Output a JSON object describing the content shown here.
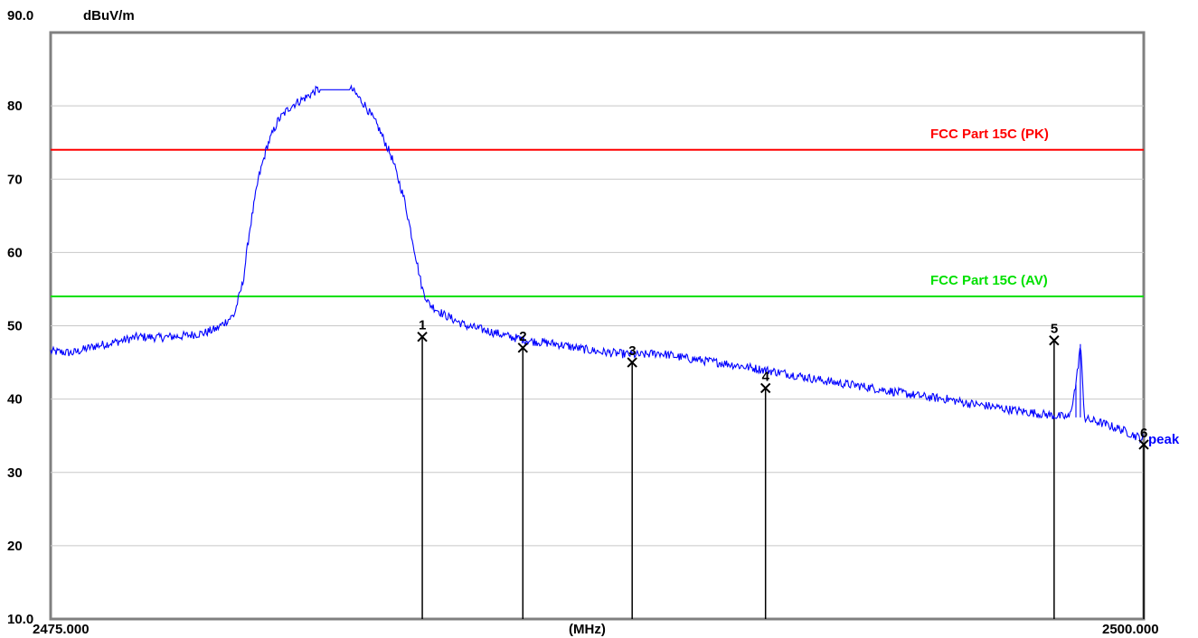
{
  "chart_data": {
    "type": "line",
    "ylabel": "dBuV/m",
    "xlabel": "(MHz)",
    "xlim": [
      2475.0,
      2500.0
    ],
    "ylim": [
      10.0,
      90.0
    ],
    "x_tick_labels": [
      "2475.000",
      "2500.000"
    ],
    "y_ticks": [
      {
        "value": 90,
        "label": "90.0"
      },
      {
        "value": 80,
        "label": "80"
      },
      {
        "value": 70,
        "label": "70"
      },
      {
        "value": 60,
        "label": "60"
      },
      {
        "value": 50,
        "label": "50"
      },
      {
        "value": 40,
        "label": "40"
      },
      {
        "value": 30,
        "label": "30"
      },
      {
        "value": 20,
        "label": "20"
      },
      {
        "value": 10,
        "label": "10.0"
      }
    ],
    "grid": true,
    "limit_lines": [
      {
        "name": "FCC Part 15C (PK)",
        "value": 74.0,
        "color": "#ff0000"
      },
      {
        "name": "FCC Part 15C (AV)",
        "value": 54.0,
        "color": "#00e000"
      }
    ],
    "series": [
      {
        "name": "peak",
        "color": "#0000ff",
        "points": [
          [
            2475.0,
            46.5
          ],
          [
            2475.5,
            46.3
          ],
          [
            2476.0,
            47.2
          ],
          [
            2476.5,
            47.8
          ],
          [
            2477.0,
            48.5
          ],
          [
            2477.5,
            48.4
          ],
          [
            2478.0,
            48.6
          ],
          [
            2478.5,
            49.0
          ],
          [
            2478.8,
            49.6
          ],
          [
            2479.2,
            51.5
          ],
          [
            2479.4,
            56.0
          ],
          [
            2479.55,
            63.0
          ],
          [
            2479.75,
            70.0
          ],
          [
            2479.95,
            74.5
          ],
          [
            2480.2,
            78.0
          ],
          [
            2480.5,
            80.0
          ],
          [
            2480.85,
            81.2
          ],
          [
            2481.1,
            82.2
          ],
          [
            2481.9,
            82.2
          ],
          [
            2482.2,
            80.0
          ],
          [
            2482.5,
            77.0
          ],
          [
            2482.8,
            73.0
          ],
          [
            2483.1,
            67.0
          ],
          [
            2483.3,
            61.0
          ],
          [
            2483.5,
            55.0
          ],
          [
            2483.65,
            53.0
          ],
          [
            2484.0,
            51.5
          ],
          [
            2484.5,
            50.0
          ],
          [
            2485.0,
            49.3
          ],
          [
            2485.5,
            48.5
          ],
          [
            2486.0,
            47.9
          ],
          [
            2486.6,
            47.5
          ],
          [
            2487.0,
            47.0
          ],
          [
            2487.5,
            46.5
          ],
          [
            2488.0,
            46.2
          ],
          [
            2488.5,
            46.0
          ],
          [
            2488.9,
            46.3
          ],
          [
            2489.5,
            45.6
          ],
          [
            2490.0,
            45.2
          ],
          [
            2490.5,
            44.8
          ],
          [
            2491.0,
            44.3
          ],
          [
            2491.5,
            43.8
          ],
          [
            2492.0,
            43.3
          ],
          [
            2492.5,
            42.7
          ],
          [
            2493.0,
            42.2
          ],
          [
            2493.5,
            41.8
          ],
          [
            2494.0,
            41.3
          ],
          [
            2494.5,
            40.8
          ],
          [
            2495.0,
            40.3
          ],
          [
            2495.5,
            40.0
          ],
          [
            2496.0,
            39.4
          ],
          [
            2496.5,
            39.0
          ],
          [
            2497.0,
            38.5
          ],
          [
            2497.5,
            38.1
          ],
          [
            2498.0,
            37.7
          ],
          [
            2498.3,
            37.5
          ],
          [
            2498.45,
            42.0
          ],
          [
            2498.55,
            47.5
          ],
          [
            2498.65,
            37.3
          ],
          [
            2499.0,
            36.8
          ],
          [
            2499.5,
            35.8
          ],
          [
            2500.0,
            34.5
          ]
        ]
      }
    ],
    "markers": [
      {
        "label": "1",
        "x": 2483.5,
        "y": 48.5
      },
      {
        "label": "2",
        "x": 2485.8,
        "y": 47.0
      },
      {
        "label": "3",
        "x": 2488.3,
        "y": 45.0
      },
      {
        "label": "4",
        "x": 2491.35,
        "y": 41.5
      },
      {
        "label": "5",
        "x": 2497.95,
        "y": 48.0
      },
      {
        "label": "6",
        "x": 2500.0,
        "y": 33.8
      }
    ]
  }
}
